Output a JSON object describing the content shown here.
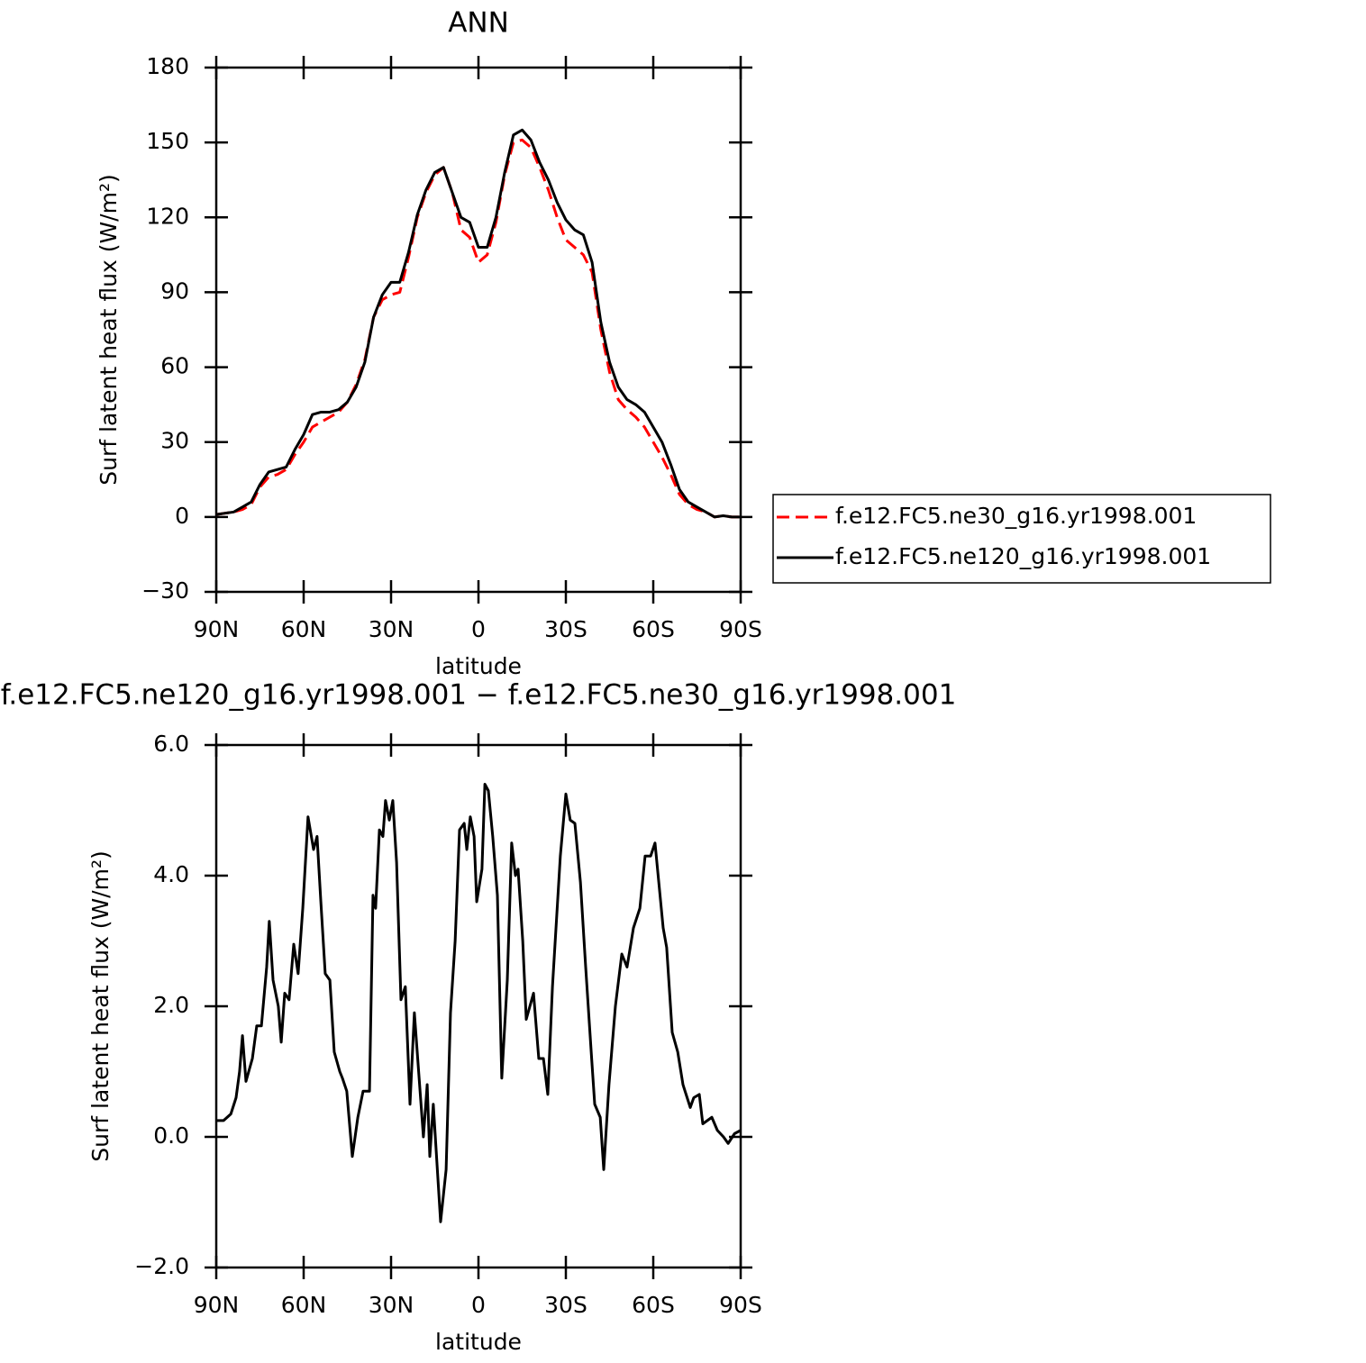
{
  "chart_data": [
    {
      "type": "line",
      "title": "ANN",
      "x_label": "latitude",
      "y_label": "Surf latent heat flux (W/m²)",
      "x": [
        90,
        87,
        84,
        81,
        78,
        75,
        72,
        69,
        66,
        63,
        60,
        57,
        54,
        51,
        48,
        45,
        42,
        39,
        36,
        33,
        30,
        27,
        24,
        21,
        18,
        15,
        12,
        9,
        6,
        3,
        0,
        -3,
        -6,
        -9,
        -12,
        -15,
        -18,
        -21,
        -24,
        -27,
        -30,
        -33,
        -36,
        -39,
        -42,
        -45,
        -48,
        -51,
        -54,
        -57,
        -60,
        -63,
        -66,
        -69,
        -72,
        -75,
        -78,
        -81,
        -84,
        -87,
        -90
      ],
      "series": [
        {
          "name": "f.e12.FC5.ne30_g16.yr1998.001",
          "color": "#ff0000",
          "line_style": "dashed",
          "values": [
            1,
            1.5,
            2,
            3,
            5,
            12,
            16,
            17,
            19,
            25,
            30,
            36,
            38,
            40,
            42,
            46,
            53,
            63,
            80,
            87,
            89,
            90,
            104,
            120,
            130,
            137,
            140,
            130,
            115,
            112,
            102,
            105,
            118,
            137,
            150,
            151,
            148,
            140,
            131,
            120,
            111,
            108,
            105,
            98,
            75,
            58,
            47,
            43,
            40,
            36,
            30,
            24,
            17,
            9,
            5,
            3,
            2,
            0,
            0.5,
            0,
            0
          ]
        },
        {
          "name": "f.e12.FC5.ne120_g16.yr1998.001",
          "color": "#000000",
          "line_style": "solid",
          "values": [
            1,
            1.5,
            2,
            4,
            6,
            13,
            18,
            19,
            20,
            27,
            33,
            41,
            42,
            42,
            43,
            46,
            52,
            62,
            80,
            89,
            94,
            94,
            106,
            121,
            131,
            138,
            140,
            130,
            120,
            118,
            108,
            108,
            120,
            138,
            153,
            155,
            151,
            142,
            135,
            126,
            119,
            115,
            113,
            102,
            78,
            62,
            52,
            47,
            45,
            42,
            36,
            30,
            21,
            11,
            6,
            4,
            2,
            0,
            0.5,
            0,
            0
          ]
        }
      ],
      "xlim": [
        90,
        -90
      ],
      "xticks": [
        {
          "value": 90,
          "label": "90N"
        },
        {
          "value": 60,
          "label": "60N"
        },
        {
          "value": 30,
          "label": "30N"
        },
        0,
        {
          "value": -30,
          "label": "30S"
        },
        {
          "value": -60,
          "label": "60S"
        },
        {
          "value": -90,
          "label": "90S"
        }
      ],
      "ylim": [
        -30,
        180
      ],
      "yticks": [
        {
          "value": -30,
          "label": "−30"
        },
        0,
        30,
        60,
        90,
        120,
        150,
        180
      ],
      "legend": "right"
    },
    {
      "type": "line",
      "title": "f.e12.FC5.ne120_g16.yr1998.001 − f.e12.FC5.ne30_g16.yr1998.001",
      "x_label": "latitude",
      "y_label": "Surf latent heat flux (W/m²)",
      "x": [
        90,
        87.5,
        85,
        83.2,
        82,
        81,
        79.8,
        77.6,
        76.1,
        74.5,
        72.7,
        71.8,
        70.5,
        68.7,
        67.7,
        66.5,
        65,
        63.4,
        61.9,
        60.3,
        58.5,
        56.6,
        55.4,
        54.1,
        52.6,
        51,
        49.5,
        47.6,
        46.7,
        45.2,
        43.3,
        41.4,
        39.6,
        37.4,
        36.2,
        35.3,
        34,
        32.8,
        31.9,
        30.6,
        29.4,
        28.1,
        26.6,
        25.1,
        23.5,
        22,
        18.9,
        17.6,
        16.7,
        15.5,
        13,
        11.1,
        9.6,
        8,
        6.5,
        4.9,
        4,
        2.8,
        1.5,
        0.6,
        -1.2,
        -2.2,
        -3.4,
        -4.9,
        -6.5,
        -8,
        -9.9,
        -11.4,
        -12.7,
        -13.6,
        -15.2,
        -16.4,
        -18.9,
        -20.7,
        -22.3,
        -23.8,
        -25.4,
        -28.1,
        -30,
        -31.5,
        -33.1,
        -35,
        -36.8,
        -38.7,
        -39.9,
        -41.8,
        -43,
        -44.8,
        -47,
        -49.2,
        -51,
        -53.2,
        -55.4,
        -57.2,
        -59.1,
        -60.6,
        -63.4,
        -64.6,
        -66.5,
        -68.4,
        -70.2,
        -72.7,
        -73.9,
        -75.8,
        -77,
        -80.1,
        -82,
        -84.1,
        -85.7,
        -87.9,
        -90
      ],
      "series": [
        {
          "color": "#000000",
          "line_style": "solid",
          "values": [
            0.25,
            0.25,
            0.35,
            0.6,
            1.0,
            1.55,
            0.85,
            1.2,
            1.7,
            1.7,
            2.6,
            3.3,
            2.4,
            2.0,
            1.45,
            2.2,
            2.1,
            2.95,
            2.5,
            3.5,
            4.9,
            4.4,
            4.6,
            3.6,
            2.5,
            2.4,
            1.3,
            1.0,
            0.9,
            0.7,
            -0.3,
            0.3,
            0.7,
            0.7,
            3.7,
            3.5,
            4.7,
            4.6,
            5.15,
            4.85,
            5.15,
            4.2,
            2.1,
            2.3,
            0.5,
            1.9,
            0,
            0.8,
            -0.3,
            0.5,
            -1.3,
            -0.5,
            1.9,
            3.0,
            4.7,
            4.8,
            4.4,
            4.9,
            4.6,
            3.6,
            4.1,
            5.4,
            5.3,
            4.6,
            3.7,
            0.9,
            2.4,
            4.5,
            4.0,
            4.1,
            3.0,
            1.8,
            2.2,
            1.2,
            1.2,
            0.65,
            2.3,
            4.3,
            5.25,
            4.85,
            4.8,
            3.9,
            2.6,
            1.3,
            0.5,
            0.3,
            -0.5,
            0.8,
            2.0,
            2.8,
            2.6,
            3.2,
            3.5,
            4.3,
            4.3,
            4.5,
            3.2,
            2.9,
            1.6,
            1.3,
            0.8,
            0.45,
            0.6,
            0.65,
            0.2,
            0.3,
            0.1,
            0,
            -0.1,
            0.05,
            0.1
          ]
        }
      ],
      "xlim": [
        90,
        -90
      ],
      "xticks": [
        {
          "value": 90,
          "label": "90N"
        },
        {
          "value": 60,
          "label": "60N"
        },
        {
          "value": 30,
          "label": "30N"
        },
        0,
        {
          "value": -30,
          "label": "30S"
        },
        {
          "value": -60,
          "label": "60S"
        },
        {
          "value": -90,
          "label": "90S"
        }
      ],
      "ylim": [
        -2,
        6
      ],
      "yticks": [
        {
          "value": -2,
          "label": "−2.0"
        },
        {
          "value": 0,
          "label": "0.0"
        },
        {
          "value": 2,
          "label": "2.0"
        },
        {
          "value": 4,
          "label": "4.0"
        },
        {
          "value": 6,
          "label": "6.0"
        }
      ]
    }
  ]
}
